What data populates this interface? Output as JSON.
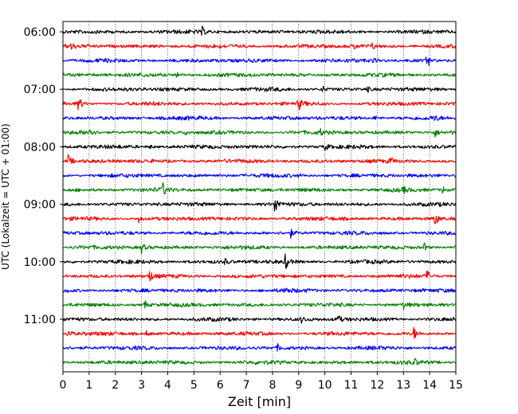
{
  "chart_data": {
    "type": "line",
    "title": "",
    "xlabel": "Zeit  [min]",
    "ylabel": "UTC (Lokalzeit = UTC + 01:00)",
    "xlim": [
      0,
      15
    ],
    "x_ticks": [
      "0",
      "1",
      "2",
      "3",
      "4",
      "5",
      "6",
      "7",
      "8",
      "9",
      "10",
      "11",
      "12",
      "13",
      "14",
      "15"
    ],
    "y_tick_labels": [
      "06:00",
      "07:00",
      "08:00",
      "09:00",
      "10:00",
      "11:00"
    ],
    "grid": "vertical dotted lines at each minute",
    "colors": [
      "#000000",
      "#ff0000",
      "#0000ff",
      "#008000"
    ],
    "traces": [
      {
        "start": "06:00",
        "color": "#000000",
        "events": [
          [
            5.3,
            1.0
          ]
        ]
      },
      {
        "start": "06:15",
        "color": "#ff0000",
        "events": [
          [
            0.3,
            0.7
          ],
          [
            11.1,
            0.6
          ],
          [
            11.8,
            0.5
          ]
        ]
      },
      {
        "start": "06:30",
        "color": "#0000ff",
        "events": [
          [
            11.8,
            0.6
          ],
          [
            13.9,
            1.8
          ]
        ]
      },
      {
        "start": "06:45",
        "color": "#008000",
        "events": [
          [
            4.3,
            1.0
          ]
        ]
      },
      {
        "start": "07:00",
        "color": "#000000",
        "events": [
          [
            9.9,
            0.8
          ],
          [
            11.6,
            0.6
          ]
        ]
      },
      {
        "start": "07:15",
        "color": "#ff0000",
        "events": [
          [
            0.6,
            1.6
          ],
          [
            9.0,
            1.3
          ]
        ]
      },
      {
        "start": "07:30",
        "color": "#0000ff",
        "events": [
          [
            11.9,
            0.5
          ],
          [
            14.2,
            0.5
          ]
        ]
      },
      {
        "start": "07:45",
        "color": "#008000",
        "events": [
          [
            1.0,
            1.4
          ],
          [
            4.7,
            0.6
          ],
          [
            9.8,
            0.7
          ],
          [
            14.2,
            0.9
          ]
        ]
      },
      {
        "start": "08:00",
        "color": "#000000",
        "events": [
          [
            3.3,
            0.6
          ],
          [
            10.0,
            0.8
          ]
        ]
      },
      {
        "start": "08:15",
        "color": "#ff0000",
        "events": [
          [
            0.2,
            1.3
          ],
          [
            12.5,
            0.6
          ]
        ]
      },
      {
        "start": "08:30",
        "color": "#0000ff",
        "events": [
          [
            9.0,
            0.3
          ]
        ]
      },
      {
        "start": "08:45",
        "color": "#008000",
        "events": [
          [
            3.8,
            1.5
          ],
          [
            13.0,
            0.6
          ],
          [
            14.5,
            0.7
          ]
        ]
      },
      {
        "start": "09:00",
        "color": "#000000",
        "events": [
          [
            8.1,
            2.1
          ]
        ]
      },
      {
        "start": "09:15",
        "color": "#ff0000",
        "events": [
          [
            2.9,
            0.8
          ],
          [
            14.2,
            1.7
          ]
        ]
      },
      {
        "start": "09:30",
        "color": "#0000ff",
        "events": [
          [
            8.7,
            0.8
          ]
        ]
      },
      {
        "start": "09:45",
        "color": "#008000",
        "events": [
          [
            3.0,
            1.2
          ],
          [
            13.8,
            0.8
          ]
        ]
      },
      {
        "start": "10:00",
        "color": "#000000",
        "events": [
          [
            8.5,
            1.8
          ],
          [
            6.2,
            0.6
          ]
        ]
      },
      {
        "start": "10:15",
        "color": "#ff0000",
        "events": [
          [
            3.3,
            1.3
          ],
          [
            13.9,
            1.2
          ]
        ]
      },
      {
        "start": "10:30",
        "color": "#0000ff",
        "events": [
          [
            8.5,
            0.6
          ]
        ]
      },
      {
        "start": "10:45",
        "color": "#008000",
        "events": [
          [
            3.1,
            1.2
          ],
          [
            13.0,
            0.8
          ]
        ]
      },
      {
        "start": "11:00",
        "color": "#000000",
        "events": [
          [
            10.5,
            1.0
          ],
          [
            9.1,
            0.6
          ]
        ]
      },
      {
        "start": "11:15",
        "color": "#ff0000",
        "events": [
          [
            0.2,
            1.1
          ],
          [
            3.2,
            0.6
          ],
          [
            13.4,
            1.3
          ]
        ]
      },
      {
        "start": "11:30",
        "color": "#0000ff",
        "events": [
          [
            8.2,
            0.6
          ]
        ]
      },
      {
        "start": "11:45",
        "color": "#008000",
        "events": [
          [
            13.4,
            0.8
          ]
        ]
      }
    ]
  }
}
